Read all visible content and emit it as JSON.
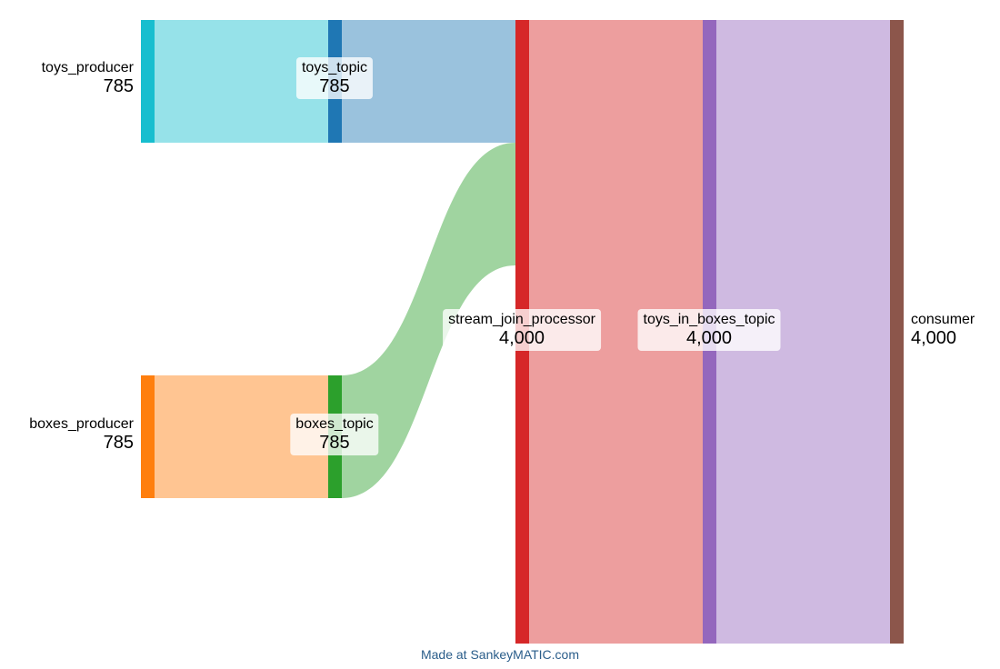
{
  "diagram": {
    "type": "sankey",
    "credit": "Made at SankeyMATIC.com",
    "nodes": [
      {
        "id": "toys_producer",
        "label": "toys_producer",
        "value": "785",
        "color": "#17becf"
      },
      {
        "id": "boxes_producer",
        "label": "boxes_producer",
        "value": "785",
        "color": "#ff7f0e"
      },
      {
        "id": "toys_topic",
        "label": "toys_topic",
        "value": "785",
        "color": "#1f77b4"
      },
      {
        "id": "boxes_topic",
        "label": "boxes_topic",
        "value": "785",
        "color": "#2ca02c"
      },
      {
        "id": "stream_join_processor",
        "label": "stream_join_processor",
        "value": "4,000",
        "color": "#d62728"
      },
      {
        "id": "toys_in_boxes_topic",
        "label": "toys_in_boxes_topic",
        "value": "4,000",
        "color": "#9467bd"
      },
      {
        "id": "consumer",
        "label": "consumer",
        "value": "4,000",
        "color": "#8c564b"
      }
    ],
    "links": [
      {
        "source": "toys_producer",
        "target": "toys_topic",
        "color": "#17becf"
      },
      {
        "source": "boxes_producer",
        "target": "boxes_topic",
        "color": "#ff7f0e"
      },
      {
        "source": "toys_topic",
        "target": "stream_join_processor",
        "color": "#1f77b4"
      },
      {
        "source": "boxes_topic",
        "target": "stream_join_processor",
        "color": "#2ca02c"
      },
      {
        "source": "stream_join_processor",
        "target": "toys_in_boxes_topic",
        "color": "#d62728"
      },
      {
        "source": "toys_in_boxes_topic",
        "target": "consumer",
        "color": "#9467bd"
      }
    ]
  }
}
